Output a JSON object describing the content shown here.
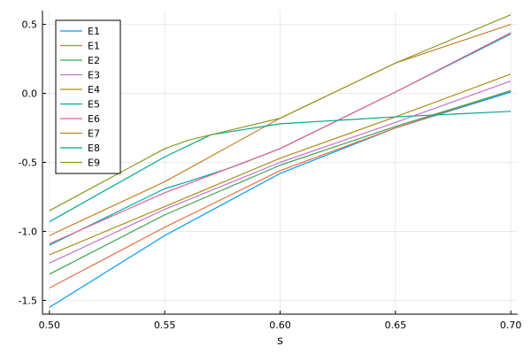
{
  "chart_data": {
    "type": "line",
    "title": "",
    "xlabel": "s",
    "ylabel": "",
    "xlim": [
      0.497,
      0.703
    ],
    "ylim": [
      -1.6,
      0.6
    ],
    "xticks": [
      0.5,
      0.55,
      0.6,
      0.65,
      0.7
    ],
    "xtick_labels": [
      "0.50",
      "0.55",
      "0.60",
      "0.65",
      "0.70"
    ],
    "yticks": [
      -1.5,
      -1.0,
      -0.5,
      0.0,
      0.5
    ],
    "ytick_labels": [
      "-1.5",
      "-1.0",
      "-0.5",
      "0.0",
      "0.5"
    ],
    "grid": true,
    "legend_position": "top-left",
    "series": [
      {
        "name": "E1",
        "color": "#009AFA",
        "x": [
          0.5,
          0.55,
          0.6,
          0.65,
          0.7
        ],
        "y": [
          -1.55,
          -1.03,
          -0.58,
          -0.25,
          0.01
        ]
      },
      {
        "name": "E1",
        "color": "#E36F47",
        "x": [
          0.5,
          0.55,
          0.6,
          0.65,
          0.7
        ],
        "y": [
          -1.41,
          -0.97,
          -0.56,
          -0.25,
          0.02
        ]
      },
      {
        "name": "E2",
        "color": "#3EA44E",
        "x": [
          0.5,
          0.55,
          0.6,
          0.65,
          0.7
        ],
        "y": [
          -1.31,
          -0.88,
          -0.52,
          -0.24,
          0.02
        ]
      },
      {
        "name": "E3",
        "color": "#C271D2",
        "x": [
          0.5,
          0.55,
          0.6,
          0.65,
          0.7
        ],
        "y": [
          -1.23,
          -0.84,
          -0.5,
          -0.21,
          0.09
        ]
      },
      {
        "name": "E4",
        "color": "#AC8E18",
        "x": [
          0.5,
          0.55,
          0.6,
          0.65,
          0.7
        ],
        "y": [
          -1.17,
          -0.82,
          -0.47,
          -0.17,
          0.14
        ]
      },
      {
        "name": "E5",
        "color": "#00A9AD",
        "x": [
          0.5,
          0.55,
          0.56,
          0.58,
          0.6,
          0.65,
          0.7
        ],
        "y": [
          -1.1,
          -0.69,
          -0.64,
          -0.53,
          -0.4,
          0.01,
          0.43
        ]
      },
      {
        "name": "E6",
        "color": "#ED5E93",
        "x": [
          0.5,
          0.55,
          0.6,
          0.65,
          0.7
        ],
        "y": [
          -1.09,
          -0.72,
          -0.4,
          0.01,
          0.44
        ]
      },
      {
        "name": "E7",
        "color": "#C68225",
        "x": [
          0.5,
          0.55,
          0.6,
          0.65,
          0.7
        ],
        "y": [
          -1.03,
          -0.64,
          -0.18,
          0.22,
          0.5
        ]
      },
      {
        "name": "E8",
        "color": "#00A98D",
        "x": [
          0.5,
          0.55,
          0.57,
          0.6,
          0.65,
          0.7
        ],
        "y": [
          -0.93,
          -0.46,
          -0.3,
          -0.22,
          -0.17,
          -0.13
        ]
      },
      {
        "name": "E9",
        "color": "#8E971E",
        "x": [
          0.5,
          0.55,
          0.56,
          0.6,
          0.65,
          0.7
        ],
        "y": [
          -0.85,
          -0.4,
          -0.34,
          -0.18,
          0.22,
          0.57
        ]
      }
    ]
  }
}
